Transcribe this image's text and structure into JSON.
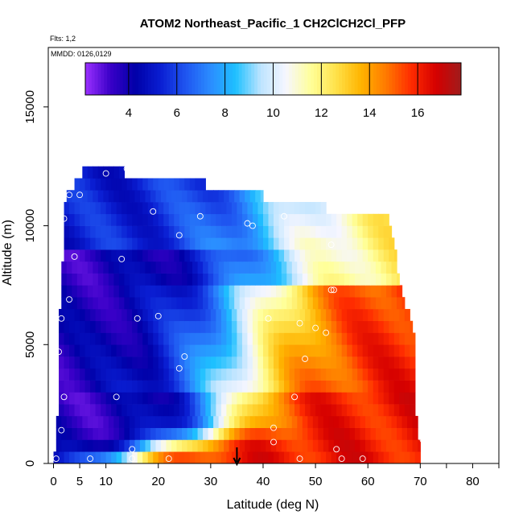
{
  "chart_data": {
    "type": "heatmap",
    "title": "ATOM2 Northeast_Pacific_1 CH2ClCH2Cl_PFP",
    "subtitle_flights": "Flts: 1,2",
    "subtitle_dates": "MMDD: 0126,0129",
    "xlabel": "Latitude (deg N)",
    "ylabel": "Altitude (m)",
    "xlim": [
      -1,
      85
    ],
    "ylim": [
      0,
      17500
    ],
    "x_ticks": [
      0,
      5,
      10,
      20,
      30,
      40,
      50,
      60,
      70,
      80
    ],
    "x_minor_ticks": [
      75,
      85
    ],
    "y_ticks": [
      0,
      5000,
      10000,
      15000
    ],
    "colorbar": {
      "range": [
        2.2,
        17.8
      ],
      "ticks": [
        4,
        6,
        8,
        10,
        12,
        14,
        16
      ],
      "colors": [
        "#9b30ff",
        "#3a00c8",
        "#0000a8",
        "#0a1ed2",
        "#1f55f0",
        "#2b8cff",
        "#1ec0ff",
        "#bde4ff",
        "#f6f6ff",
        "#ffff9a",
        "#ffe24a",
        "#ffb400",
        "#ff7a00",
        "#ff2c00",
        "#d50000",
        "#a01c1c"
      ]
    },
    "marker_x": 35,
    "grid": false,
    "legend": "colorbar-top"
  }
}
